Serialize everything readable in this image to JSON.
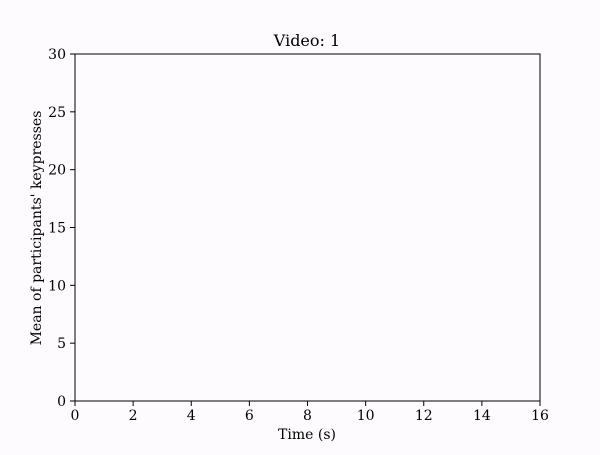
{
  "chart_data": {
    "type": "line",
    "title": "Video: 1",
    "xlabel": "Time (s)",
    "ylabel": "Mean of participants' keypresses",
    "xlim": [
      0,
      16
    ],
    "ylim": [
      0,
      30
    ],
    "x_ticks": [
      0,
      2,
      4,
      6,
      8,
      10,
      12,
      14,
      16
    ],
    "y_ticks": [
      0,
      5,
      10,
      15,
      20,
      25,
      30
    ],
    "x_tick_labels": [
      "0",
      "2",
      "4",
      "6",
      "8",
      "10",
      "12",
      "14",
      "16"
    ],
    "y_tick_labels": [
      "0",
      "5",
      "10",
      "15",
      "20",
      "25",
      "30"
    ],
    "series": [],
    "grid": false,
    "background": "#fdfbfd",
    "axes_color": "#000000"
  }
}
